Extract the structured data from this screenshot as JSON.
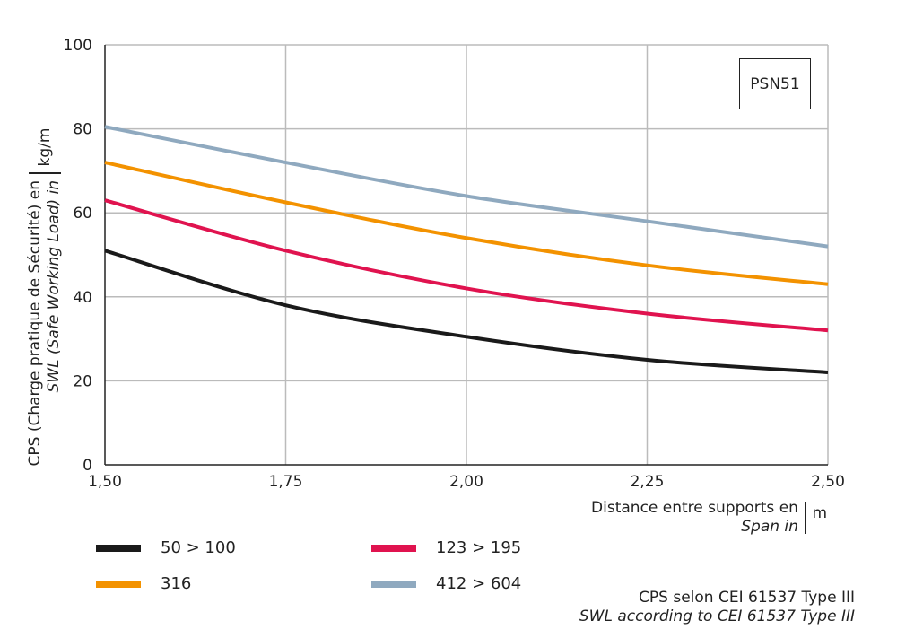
{
  "chart_data": {
    "type": "line",
    "title": "",
    "label_box": "PSN51",
    "ylabel": {
      "line1": "CPS (Charge pratique de Sécurité) en",
      "line2": "SWL (Safe Working Load) in",
      "unit": "kg/m"
    },
    "xlabel": {
      "line1": "Distance entre supports en",
      "line2": "Span in",
      "unit": "m"
    },
    "xlim": [
      1.5,
      2.5
    ],
    "ylim": [
      0,
      100
    ],
    "x_ticks": [
      "1,50",
      "1,75",
      "2,00",
      "2,25",
      "2,50"
    ],
    "x_tick_values": [
      1.5,
      1.75,
      2.0,
      2.25,
      2.5
    ],
    "y_ticks": [
      "0",
      "20",
      "40",
      "60",
      "80",
      "100"
    ],
    "y_tick_values": [
      0,
      20,
      40,
      60,
      80,
      100
    ],
    "grid": true,
    "x": [
      1.5,
      1.75,
      2.0,
      2.25,
      2.5
    ],
    "series": [
      {
        "name": "50 > 100",
        "color": "#1a1a1a",
        "values": [
          51,
          38,
          30.5,
          25,
          22
        ]
      },
      {
        "name": "123 > 195",
        "color": "#e0134f",
        "values": [
          63,
          51,
          42,
          36,
          32
        ]
      },
      {
        "name": "316",
        "color": "#f39200",
        "values": [
          72,
          62.5,
          54,
          47.5,
          43
        ]
      },
      {
        "name": "412 > 604",
        "color": "#8fa9bf",
        "values": [
          80.5,
          72,
          64,
          58,
          52
        ]
      }
    ],
    "legend_placement": "bottom",
    "note": {
      "line1": "CPS selon CEI 61537 Type III",
      "line2": "SWL according to CEI 61537 Type III"
    }
  }
}
